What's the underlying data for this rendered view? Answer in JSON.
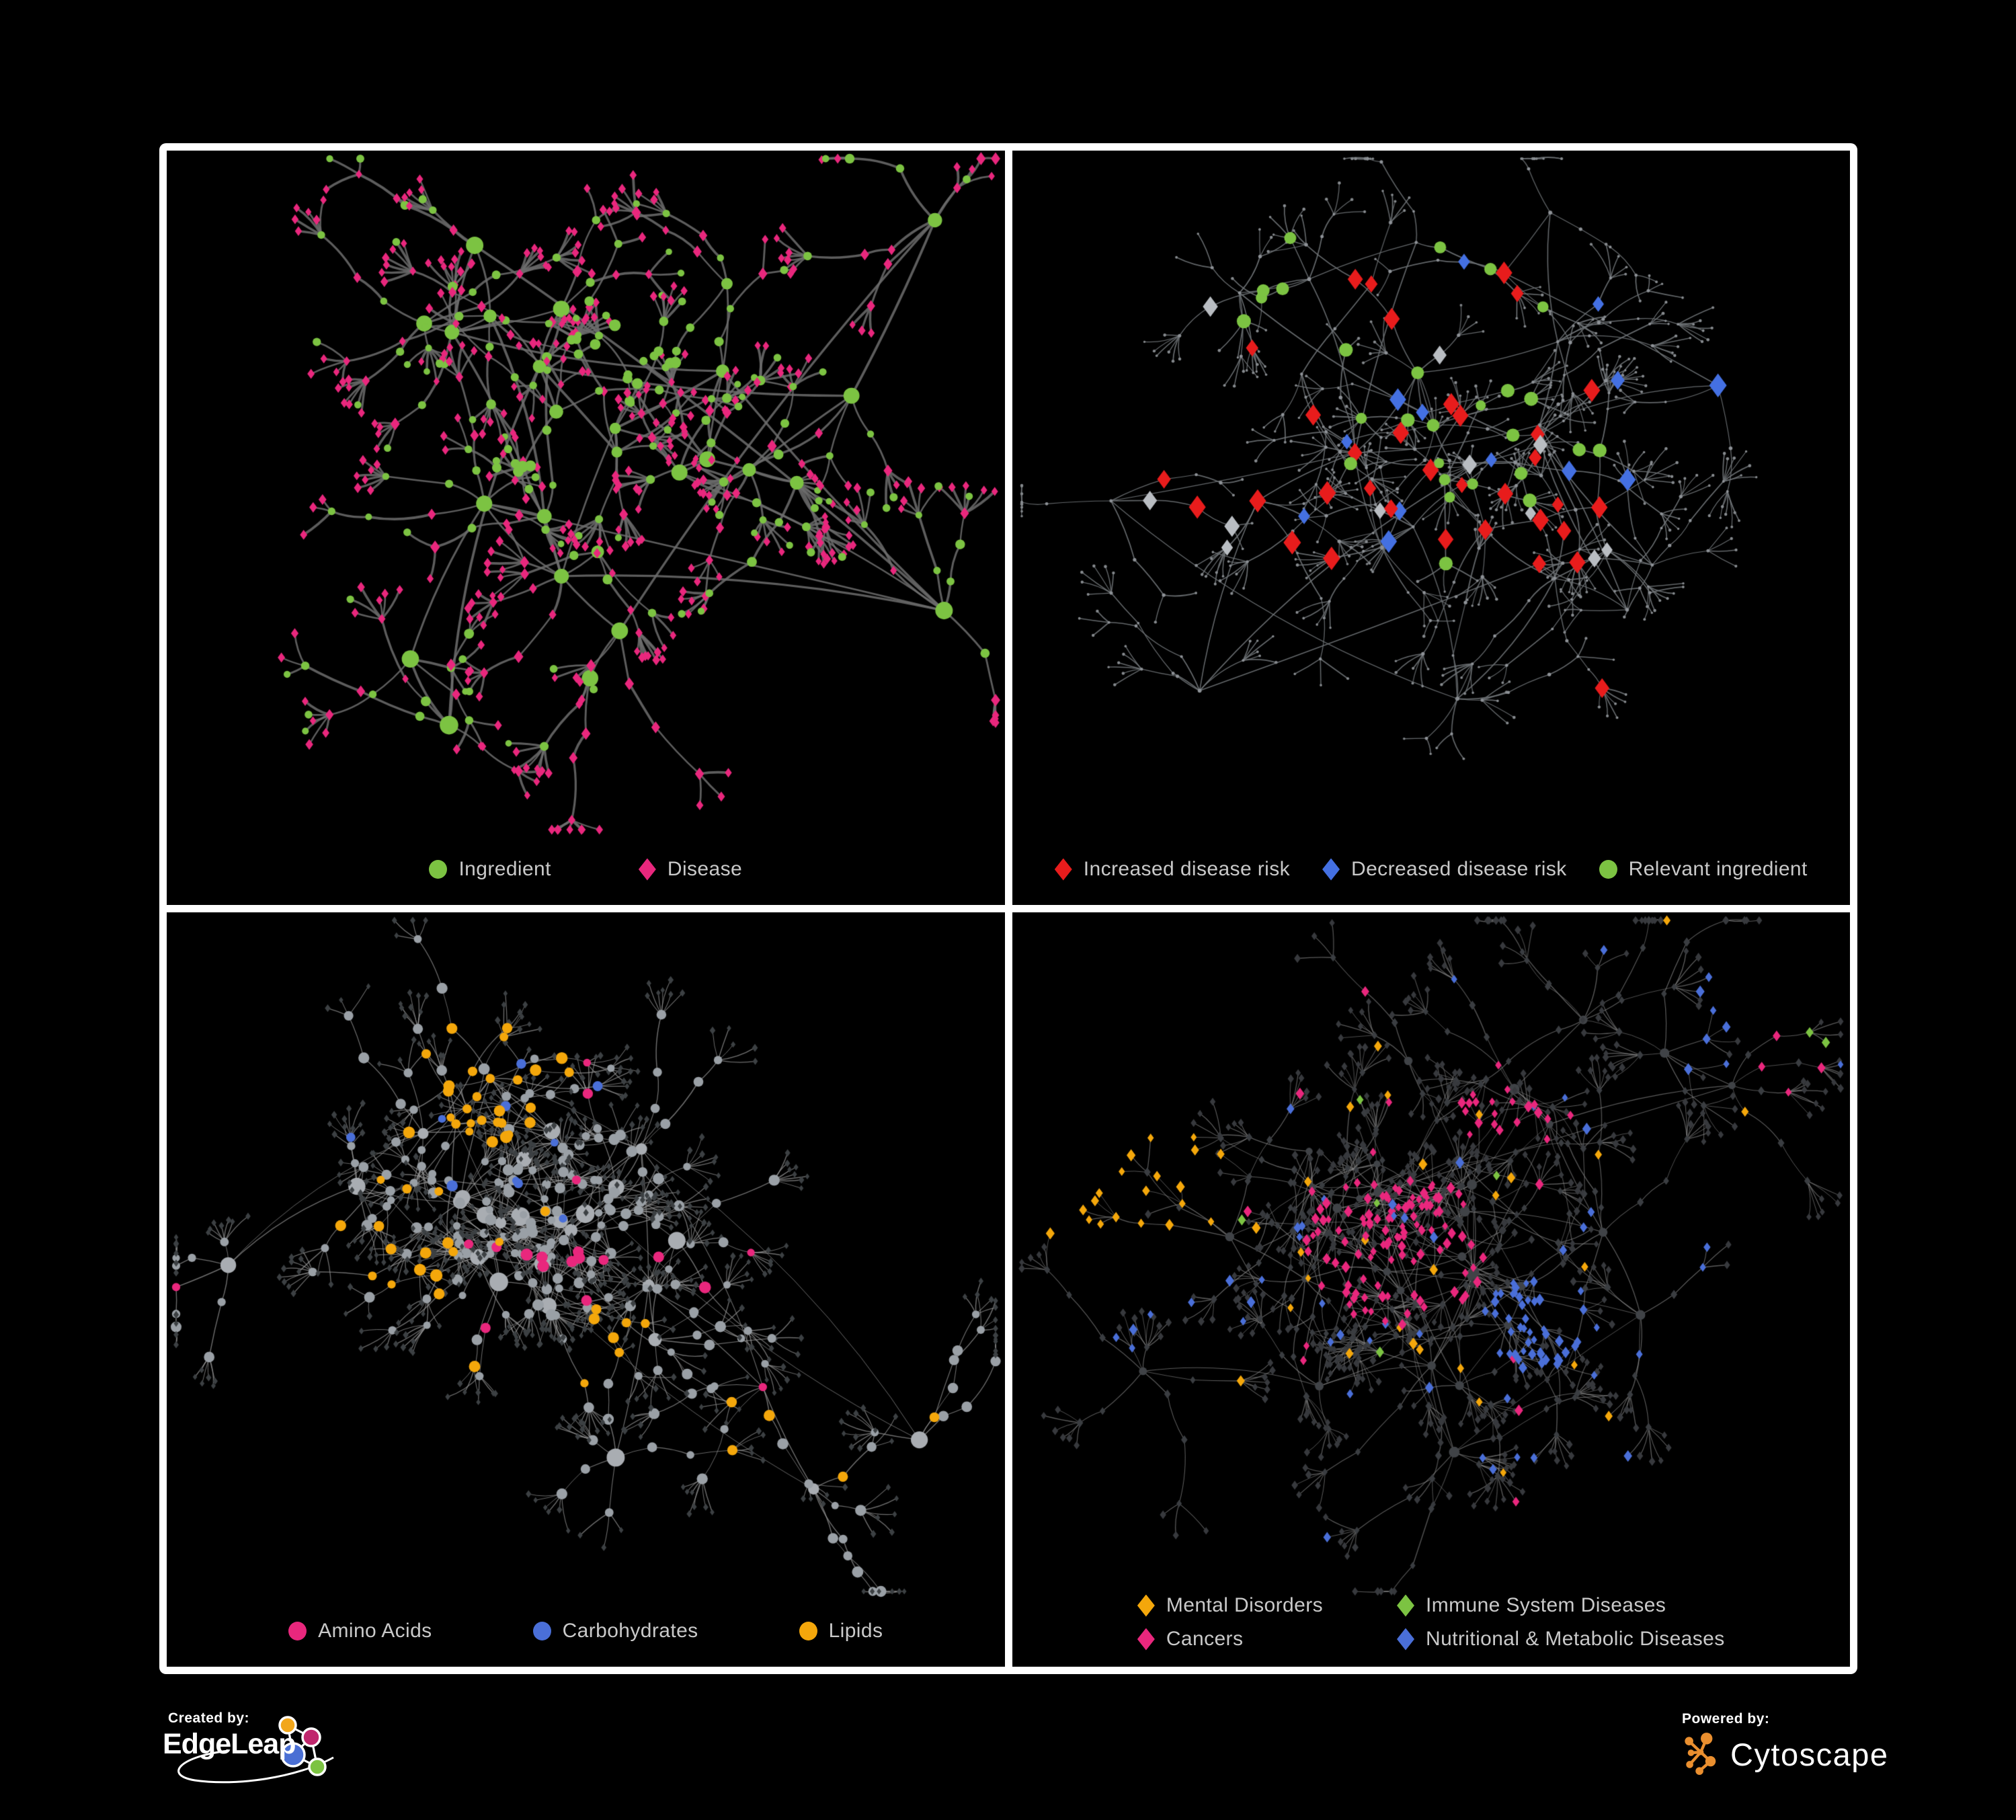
{
  "theme": {
    "page_bg": "#000000",
    "panel_bg": "#000000",
    "frame": "#ffffff",
    "legend_text": "#c9c9c9",
    "cy_orange": "#ea8f2f",
    "el_orange": "#f2a71b",
    "el_magenta": "#c0276d",
    "el_blue": "#4a6fd4",
    "el_green": "#7cc342"
  },
  "branding": {
    "created_by_label": "Created by:",
    "edgeleap_name": "EdgeLeap",
    "powered_by_label": "Powered by:",
    "cytoscape_name": "Cytoscape"
  },
  "chart_data": [
    {
      "id": "ingredient-disease-network",
      "type": "network",
      "legend": [
        {
          "label": "Ingredient",
          "shape": "circle",
          "color": "#7cc342"
        },
        {
          "label": "Disease",
          "shape": "diamond",
          "color": "#e9277d"
        }
      ],
      "seed": 20211,
      "hubs": 26,
      "branching": {
        "bmin": 2,
        "bmax": 5,
        "cmax": 3,
        "fmin": 2,
        "fmax": 7
      },
      "style": {
        "edge_color": "#6d6d6d",
        "edge_width": 3.1,
        "edge_alpha": 0.85
      },
      "node_styles": {
        "hub": {
          "shape": "circle",
          "color": "#7cc342",
          "rmin": 8,
          "rmax": 14
        },
        "mid": {
          "shape": "circle",
          "color": "#7cc342",
          "rmin": 5,
          "rmax": 7.5,
          "alt": {
            "shape": "diamond",
            "color": "#e9277d",
            "prob": 0.5
          }
        },
        "leaf": {
          "shape": "diamond",
          "color": "#e9277d",
          "rmin": 4.8,
          "rmax": 6.2,
          "alt": {
            "shape": "circle",
            "color": "#7cc342",
            "prob": 0.13
          }
        }
      },
      "zones": [
        {
          "x": 0.56,
          "y": 0.28,
          "r": 0.06,
          "prob": 0.8,
          "shape": "circle",
          "color": "#7cc342",
          "size": 7,
          "targets": [
            "mid",
            "leaf"
          ]
        },
        {
          "x": 0.4,
          "y": 0.46,
          "r": 0.05,
          "prob": 0.6,
          "shape": "circle",
          "color": "#7cc342",
          "size": 7,
          "targets": [
            "mid",
            "leaf"
          ]
        }
      ]
    },
    {
      "id": "disease-risk-network",
      "type": "network",
      "legend": [
        {
          "label": "Increased disease risk",
          "shape": "diamond",
          "color": "#e81c1c"
        },
        {
          "label": "Decreased disease risk",
          "shape": "diamond",
          "color": "#4470e2"
        },
        {
          "label": "Relevant ingredient",
          "shape": "circle",
          "color": "#7cc342"
        }
      ],
      "seed": 8872,
      "hubs": 30,
      "branching": {
        "bmin": 2,
        "bmax": 5,
        "cmax": 3,
        "fmin": 2,
        "fmax": 7
      },
      "style": {
        "edge_color": "#6e7276",
        "edge_width": 1.5,
        "edge_alpha": 0.9
      },
      "node_styles": {
        "hub": {
          "shape": "circle",
          "color": "#8d9196",
          "rmin": 2.2,
          "rmax": 3.2
        },
        "mid": {
          "shape": "circle",
          "color": "#8d9196",
          "rmin": 1.9,
          "rmax": 2.8
        },
        "leaf": {
          "shape": "circle",
          "color": "#85898d",
          "rmin": 1.7,
          "rmax": 2.4
        }
      },
      "highlights": [
        {
          "region": [
            0.06,
            0.12,
            0.74,
            0.62
          ],
          "items": [
            {
              "shape": "diamond",
              "color": "#e81c1c",
              "size": 11.5,
              "count": 33
            },
            {
              "shape": "circle",
              "color": "#7cc342",
              "size": 9,
              "count": 27
            },
            {
              "shape": "diamond",
              "color": "#4470e2",
              "size": 11,
              "count": 12
            },
            {
              "shape": "diamond",
              "color": "#b9bdc2",
              "size": 10.5,
              "count": 11
            }
          ]
        },
        {
          "region": [
            0.78,
            0.33,
            0.9,
            0.42
          ],
          "items": [
            {
              "shape": "diamond",
              "color": "#4470e2",
              "size": 12,
              "count": 2
            },
            {
              "shape": "circle",
              "color": "#7cc342",
              "size": 9,
              "count": 1
            }
          ]
        },
        {
          "region": [
            0.7,
            0.74,
            0.88,
            0.88
          ],
          "items": [
            {
              "shape": "diamond",
              "color": "#e81c1c",
              "size": 11.5,
              "count": 3
            }
          ]
        }
      ]
    },
    {
      "id": "nutrient-class-network",
      "type": "network",
      "legend": [
        {
          "label": "Amino Acids",
          "shape": "circle",
          "color": "#e9277d"
        },
        {
          "label": "Carbohydrates",
          "shape": "circle",
          "color": "#4a6fd8"
        },
        {
          "label": "Lipids",
          "shape": "circle",
          "color": "#f4a70b"
        }
      ],
      "seed": 5531,
      "hubs": 30,
      "branching": {
        "bmin": 3,
        "bmax": 6,
        "cmax": 3,
        "fmin": 3,
        "fmax": 8
      },
      "style": {
        "edge_color": "#9d9d9d",
        "edge_width": 1.2,
        "edge_alpha": 0.7
      },
      "node_styles": {
        "hub": {
          "shape": "circle",
          "color": "#a9adb2",
          "rmin": 8,
          "rmax": 14
        },
        "mid": {
          "shape": "circle",
          "color": "#9aa0a6",
          "rmin": 5.5,
          "rmax": 8.5
        },
        "leaf": {
          "shape": "diamond",
          "color": "#3c4043",
          "rmin": 3.4,
          "rmax": 4.6
        }
      },
      "zones": [
        {
          "x": 0.4,
          "y": 0.24,
          "r": 0.1,
          "prob": 0.72,
          "shape": "circle",
          "color": "#f4a70b",
          "size": 7.5,
          "targets": [
            "mid",
            "hub"
          ]
        },
        {
          "x": 0.4,
          "y": 0.24,
          "r": 0.12,
          "prob": 0.4,
          "shape": "circle",
          "color": "#4a6fd8",
          "size": 7,
          "targets": [
            "mid"
          ]
        },
        {
          "x": 0.29,
          "y": 0.5,
          "r": 0.06,
          "prob": 0.55,
          "shape": "circle",
          "color": "#f4a70b",
          "size": 7.5,
          "targets": [
            "mid"
          ]
        },
        {
          "x": 0.53,
          "y": 0.62,
          "r": 0.05,
          "prob": 0.7,
          "shape": "circle",
          "color": "#f4a70b",
          "size": 7.5,
          "targets": [
            "mid",
            "hub"
          ]
        },
        {
          "x": 0.5,
          "y": 0.45,
          "r": 0.6,
          "prob": 0.05,
          "shape": "circle",
          "color": "#f4a70b",
          "size": 7.5,
          "targets": [
            "mid"
          ]
        },
        {
          "x": 0.45,
          "y": 0.75,
          "r": 0.3,
          "prob": 0.1,
          "shape": "circle",
          "color": "#e9277d",
          "size": 7.5,
          "targets": [
            "mid",
            "hub"
          ]
        },
        {
          "x": 0.5,
          "y": 0.4,
          "r": 0.6,
          "prob": 0.03,
          "shape": "circle",
          "color": "#e9277d",
          "size": 7,
          "targets": [
            "mid"
          ]
        },
        {
          "x": 0.5,
          "y": 0.45,
          "r": 0.6,
          "prob": 0.02,
          "shape": "circle",
          "color": "#4a6fd8",
          "size": 7,
          "targets": [
            "mid"
          ]
        }
      ]
    },
    {
      "id": "disease-class-network",
      "type": "network",
      "legend": [
        {
          "label": "Mental Disorders",
          "shape": "diamond",
          "color": "#f4a70b"
        },
        {
          "label": "Immune System Diseases",
          "shape": "diamond",
          "color": "#7cc342"
        },
        {
          "label": "Cancers",
          "shape": "diamond",
          "color": "#e9277d"
        },
        {
          "label": "Nutritional & Metabolic Diseases",
          "shape": "diamond",
          "color": "#4a6fd8"
        }
      ],
      "seed": 9917,
      "hubs": 32,
      "branching": {
        "bmin": 3,
        "bmax": 6,
        "cmax": 3,
        "fmin": 3,
        "fmax": 8
      },
      "style": {
        "edge_color": "#8a8a8a",
        "edge_width": 1.1,
        "edge_alpha": 0.65
      },
      "node_styles": {
        "hub": {
          "shape": "circle",
          "color": "#404347",
          "rmin": 5,
          "rmax": 8
        },
        "mid": {
          "shape": "diamond",
          "color": "#3a3d41",
          "rmin": 4.2,
          "rmax": 5.4
        },
        "leaf": {
          "shape": "diamond",
          "color": "#37393d",
          "rmin": 4.0,
          "rmax": 5.2
        }
      },
      "zones": [
        {
          "x": 0.145,
          "y": 0.4,
          "r": 0.125,
          "prob": 0.8,
          "shape": "diamond",
          "color": "#f4a70b",
          "size": 5.6,
          "targets": [
            "mid",
            "leaf"
          ]
        },
        {
          "x": 0.46,
          "y": 0.49,
          "r": 0.11,
          "prob": 0.5,
          "shape": "diamond",
          "color": "#e9277d",
          "size": 5.6,
          "targets": [
            "mid",
            "leaf"
          ]
        },
        {
          "x": 0.58,
          "y": 0.3,
          "r": 0.05,
          "prob": 0.5,
          "shape": "diamond",
          "color": "#e9277d",
          "size": 5.6,
          "targets": [
            "mid",
            "leaf"
          ]
        },
        {
          "x": 0.93,
          "y": 0.22,
          "r": 0.05,
          "prob": 0.6,
          "shape": "diamond",
          "color": "#e9277d",
          "size": 5.6,
          "targets": [
            "mid",
            "leaf"
          ]
        },
        {
          "x": 0.63,
          "y": 0.6,
          "r": 0.07,
          "prob": 0.7,
          "shape": "diamond",
          "color": "#4a6fd8",
          "size": 5.6,
          "targets": [
            "mid",
            "leaf"
          ]
        },
        {
          "x": 0.83,
          "y": 0.16,
          "r": 0.09,
          "prob": 0.5,
          "shape": "diamond",
          "color": "#4a6fd8",
          "size": 5.6,
          "targets": [
            "mid",
            "leaf"
          ]
        },
        {
          "x": 0.87,
          "y": 0.45,
          "r": 0.08,
          "prob": 0.45,
          "shape": "diamond",
          "color": "#4a6fd8",
          "size": 5.6,
          "targets": [
            "mid",
            "leaf"
          ]
        },
        {
          "x": 0.5,
          "y": 0.45,
          "r": 0.7,
          "prob": 0.05,
          "shape": "diamond",
          "color": "#4a6fd8",
          "size": 5.6,
          "targets": [
            "mid",
            "leaf"
          ]
        },
        {
          "x": 0.5,
          "y": 0.45,
          "r": 0.7,
          "prob": 0.03,
          "shape": "diamond",
          "color": "#f4a70b",
          "size": 5.6,
          "targets": [
            "mid",
            "leaf"
          ]
        },
        {
          "x": 0.5,
          "y": 0.45,
          "r": 0.7,
          "prob": 0.02,
          "shape": "diamond",
          "color": "#e9277d",
          "size": 5.6,
          "targets": [
            "mid",
            "leaf"
          ]
        },
        {
          "x": 0.5,
          "y": 0.45,
          "r": 0.7,
          "prob": 0.013,
          "shape": "diamond",
          "color": "#7cc342",
          "size": 5.6,
          "targets": [
            "mid",
            "leaf"
          ]
        }
      ]
    }
  ]
}
